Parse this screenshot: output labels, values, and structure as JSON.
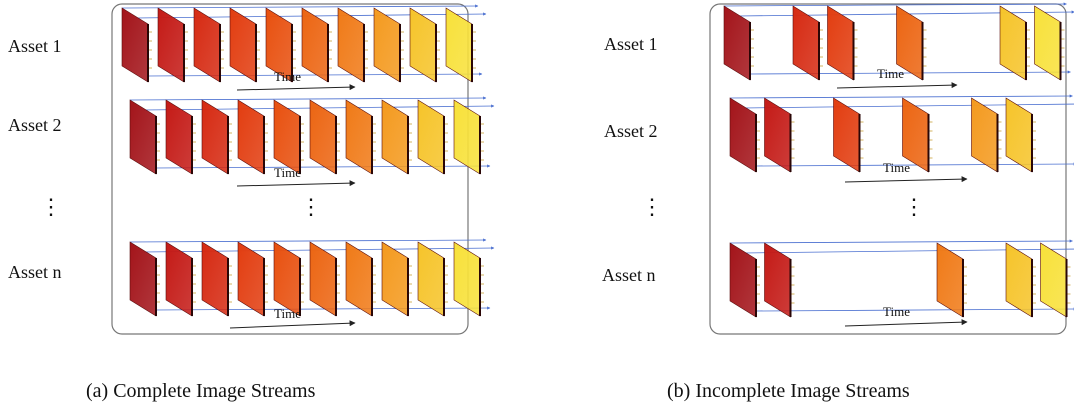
{
  "panels": [
    {
      "caption": "(a)  Complete Image Streams",
      "rows": [
        {
          "label": "Asset 1",
          "present": [
            true,
            true,
            true,
            true,
            true,
            true,
            true,
            true,
            true,
            true
          ]
        },
        {
          "label": "Asset 2",
          "present": [
            true,
            true,
            true,
            true,
            true,
            true,
            true,
            true,
            true,
            true
          ]
        },
        {
          "label": "⋮",
          "present": []
        },
        {
          "label": "Asset n",
          "present": [
            true,
            true,
            true,
            true,
            true,
            true,
            true,
            true,
            true,
            true
          ]
        }
      ],
      "time_label": "Time"
    },
    {
      "caption": "(b)  Incomplete Image Streams",
      "rows": [
        {
          "label": "Asset 1",
          "present": [
            true,
            false,
            true,
            true,
            false,
            true,
            false,
            false,
            true,
            true
          ]
        },
        {
          "label": "Asset 2",
          "present": [
            true,
            true,
            false,
            true,
            false,
            true,
            false,
            true,
            true,
            false
          ]
        },
        {
          "label": "⋮",
          "present": []
        },
        {
          "label": "Asset n",
          "present": [
            true,
            true,
            false,
            false,
            false,
            false,
            true,
            false,
            true,
            true
          ]
        }
      ],
      "time_label": "Time"
    }
  ],
  "frame_colors": [
    "#a3141a",
    "#c41a16",
    "#d62a12",
    "#e23d10",
    "#e8500f",
    "#ec6512",
    "#f07a17",
    "#f49a1f",
    "#f6c42a",
    "#f8e13a"
  ],
  "edge_color": "#4a6fd0"
}
